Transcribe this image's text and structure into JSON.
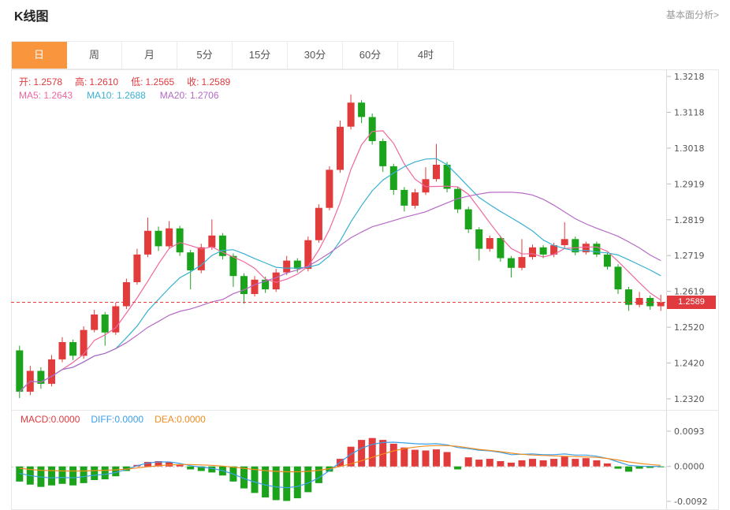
{
  "header": {
    "title": "K线图",
    "link": "基本面分析>"
  },
  "tabs": {
    "items": [
      {
        "label": "日",
        "active": true
      },
      {
        "label": "周",
        "active": false
      },
      {
        "label": "月",
        "active": false
      },
      {
        "label": "5分",
        "active": false
      },
      {
        "label": "15分",
        "active": false
      },
      {
        "label": "30分",
        "active": false
      },
      {
        "label": "60分",
        "active": false
      },
      {
        "label": "4时",
        "active": false
      }
    ]
  },
  "ohlc": {
    "open_label": "开:",
    "open_value": "1.2578",
    "high_label": "高:",
    "high_value": "1.2610",
    "low_label": "低:",
    "low_value": "1.2565",
    "close_label": "收:",
    "close_value": "1.2589"
  },
  "ma": {
    "ma5_label": "MA5:",
    "ma5_value": "1.2643",
    "ma10_label": "MA10:",
    "ma10_value": "1.2688",
    "ma20_label": "MA20:",
    "ma20_value": "1.2706"
  },
  "macd_header": {
    "macd_label": "MACD:",
    "macd_value": "0.0000",
    "diff_label": "DIFF:",
    "diff_value": "0.0000",
    "dea_label": "DEA:",
    "dea_value": "0.0000"
  },
  "price_tag": "1.2589",
  "colors": {
    "up": "#e23b3b",
    "down": "#1ca31c",
    "ma5": "#f0679e",
    "ma10": "#38b1d2",
    "ma20": "#b56ac5",
    "diff": "#3a9fe8",
    "dea": "#f08c1e",
    "tab_active_bg": "#f8953d",
    "price_tag_bg": "#e0393e"
  },
  "chart_data": [
    {
      "type": "candlestick",
      "title": "K线图",
      "ylim": [
        1.232,
        1.3218
      ],
      "y_axis_labels": [
        "1.3218",
        "1.3118",
        "1.3018",
        "1.2919",
        "1.2819",
        "1.2719",
        "1.2619",
        "1.2520",
        "1.2420",
        "1.2320"
      ],
      "current_price": 1.2589,
      "legend": [
        "MA5",
        "MA10",
        "MA20"
      ],
      "overlays": [
        {
          "name": "MA5",
          "window": 5
        },
        {
          "name": "MA10",
          "window": 10
        },
        {
          "name": "MA20",
          "window": 20
        }
      ],
      "candles": [
        [
          1.2455,
          1.2468,
          1.2322,
          1.234
        ],
        [
          1.234,
          1.2412,
          1.233,
          1.2398
        ],
        [
          1.2398,
          1.2408,
          1.2348,
          1.2362
        ],
        [
          1.2362,
          1.2442,
          1.2355,
          1.243
        ],
        [
          1.243,
          1.2492,
          1.2422,
          1.2478
        ],
        [
          1.2478,
          1.2485,
          1.2428,
          1.244
        ],
        [
          1.244,
          1.2522,
          1.2432,
          1.2512
        ],
        [
          1.2512,
          1.2568,
          1.2505,
          1.2555
        ],
        [
          1.2555,
          1.2562,
          1.2468,
          1.2505
        ],
        [
          1.2505,
          1.2588,
          1.2498,
          1.2578
        ],
        [
          1.2578,
          1.2655,
          1.257,
          1.2645
        ],
        [
          1.2645,
          1.2738,
          1.2638,
          1.2722
        ],
        [
          1.2722,
          1.2825,
          1.2715,
          1.2788
        ],
        [
          1.2788,
          1.28,
          1.2732,
          1.2745
        ],
        [
          1.2745,
          1.2815,
          1.2738,
          1.2795
        ],
        [
          1.2795,
          1.2802,
          1.2718,
          1.2728
        ],
        [
          1.2728,
          1.2735,
          1.2625,
          1.2678
        ],
        [
          1.2678,
          1.2752,
          1.267,
          1.2742
        ],
        [
          1.2742,
          1.282,
          1.2735,
          1.2775
        ],
        [
          1.2775,
          1.2782,
          1.2708,
          1.2718
        ],
        [
          1.2718,
          1.2725,
          1.2632,
          1.2662
        ],
        [
          1.2662,
          1.267,
          1.2585,
          1.2612
        ],
        [
          1.2612,
          1.2662,
          1.2605,
          1.2652
        ],
        [
          1.2652,
          1.266,
          1.2615,
          1.2625
        ],
        [
          1.2625,
          1.2682,
          1.2618,
          1.2672
        ],
        [
          1.2672,
          1.2718,
          1.2665,
          1.2705
        ],
        [
          1.2705,
          1.2712,
          1.2672,
          1.2682
        ],
        [
          1.2682,
          1.2772,
          1.2675,
          1.2762
        ],
        [
          1.2762,
          1.2862,
          1.2755,
          1.2852
        ],
        [
          1.2852,
          1.2968,
          1.2845,
          1.2958
        ],
        [
          1.2958,
          1.3095,
          1.295,
          1.3078
        ],
        [
          1.3078,
          1.3168,
          1.307,
          1.3145
        ],
        [
          1.3145,
          1.3152,
          1.3088,
          1.3105
        ],
        [
          1.3105,
          1.3115,
          1.3028,
          1.3038
        ],
        [
          1.3038,
          1.3045,
          1.2952,
          1.2968
        ],
        [
          1.2968,
          1.2975,
          1.2888,
          1.2902
        ],
        [
          1.2902,
          1.291,
          1.2842,
          1.2858
        ],
        [
          1.2858,
          1.2905,
          1.285,
          1.2895
        ],
        [
          1.2895,
          1.2965,
          1.2888,
          1.2932
        ],
        [
          1.2932,
          1.303,
          1.2925,
          1.2972
        ],
        [
          1.2972,
          1.298,
          1.2895,
          1.2905
        ],
        [
          1.2905,
          1.2912,
          1.2838,
          1.2848
        ],
        [
          1.2848,
          1.2855,
          1.2782,
          1.2792
        ],
        [
          1.2792,
          1.2798,
          1.2705,
          1.2738
        ],
        [
          1.2738,
          1.2775,
          1.273,
          1.2768
        ],
        [
          1.2768,
          1.2775,
          1.2702,
          1.2712
        ],
        [
          1.2712,
          1.2718,
          1.2658,
          1.2685
        ],
        [
          1.2685,
          1.2765,
          1.2678,
          1.2715
        ],
        [
          1.2715,
          1.275,
          1.2708,
          1.2742
        ],
        [
          1.2742,
          1.2748,
          1.2712,
          1.2722
        ],
        [
          1.2722,
          1.2755,
          1.2715,
          1.2748
        ],
        [
          1.2748,
          1.2812,
          1.274,
          1.2765
        ],
        [
          1.2765,
          1.2772,
          1.272,
          1.2728
        ],
        [
          1.2728,
          1.2758,
          1.2722,
          1.2752
        ],
        [
          1.2752,
          1.2758,
          1.2715,
          1.2722
        ],
        [
          1.2722,
          1.2728,
          1.268,
          1.2688
        ],
        [
          1.2688,
          1.2695,
          1.2612,
          1.2625
        ],
        [
          1.2625,
          1.2632,
          1.2565,
          1.2582
        ],
        [
          1.2582,
          1.2618,
          1.2575,
          1.2601
        ],
        [
          1.2601,
          1.2608,
          1.2568,
          1.2578
        ],
        [
          1.2578,
          1.261,
          1.2565,
          1.2589
        ]
      ]
    },
    {
      "type": "bar",
      "title": "MACD",
      "ylim": [
        -0.0092,
        0.0093
      ],
      "y_axis_labels": [
        "0.0093",
        "0.0000",
        "-0.0092"
      ],
      "histogram": [
        -0.004,
        -0.0048,
        -0.0054,
        -0.005,
        -0.0046,
        -0.005,
        -0.0044,
        -0.0036,
        -0.0034,
        -0.0026,
        -0.0012,
        0.0004,
        0.0012,
        0.0014,
        0.0012,
        0.0004,
        -0.0008,
        -0.0012,
        -0.0016,
        -0.0024,
        -0.004,
        -0.0058,
        -0.007,
        -0.0082,
        -0.0089,
        -0.0091,
        -0.0084,
        -0.0068,
        -0.0044,
        -0.0014,
        0.002,
        0.0052,
        0.007,
        0.0075,
        0.007,
        0.006,
        0.005,
        0.0044,
        0.0042,
        0.0045,
        0.0038,
        -0.0008,
        0.0024,
        0.0018,
        0.002,
        0.0014,
        0.001,
        0.0016,
        0.002,
        0.0016,
        0.002,
        0.0026,
        0.002,
        0.0022,
        0.0016,
        0.0008,
        -0.0006,
        -0.0014,
        -0.0006,
        -0.0004,
        -0.0001
      ],
      "diff": [
        -0.0018,
        -0.0024,
        -0.0028,
        -0.003,
        -0.0029,
        -0.003,
        -0.0027,
        -0.0023,
        -0.0021,
        -0.0016,
        -0.0008,
        0.0002,
        0.0009,
        0.0012,
        0.0012,
        0.0008,
        0.0002,
        -0.0002,
        -0.0005,
        -0.0011,
        -0.002,
        -0.0032,
        -0.0041,
        -0.0049,
        -0.0054,
        -0.0056,
        -0.0053,
        -0.0044,
        -0.003,
        -0.0011,
        0.0011,
        0.0032,
        0.0048,
        0.0058,
        0.0063,
        0.0064,
        0.0062,
        0.006,
        0.0059,
        0.006,
        0.0057,
        0.005,
        0.0047,
        0.0043,
        0.0041,
        0.0037,
        0.0031,
        0.0032,
        0.0033,
        0.0031,
        0.0031,
        0.0033,
        0.003,
        0.003,
        0.0027,
        0.0021,
        0.0012,
        0.0003,
        0.0001,
        0.0,
        0.0
      ],
      "dea": [
        -0.0005,
        -0.0008,
        -0.001,
        -0.0011,
        -0.0012,
        -0.0012,
        -0.0012,
        -0.0011,
        -0.001,
        -0.0009,
        -0.0007,
        -0.0004,
        -0.0001,
        0.0002,
        0.0004,
        0.0005,
        0.0005,
        0.0004,
        0.0003,
        0.0001,
        -0.0002,
        -0.0005,
        -0.0008,
        -0.0011,
        -0.0013,
        -0.0014,
        -0.0014,
        -0.0013,
        -0.001,
        -0.0006,
        0.0,
        0.0007,
        0.0015,
        0.0024,
        0.0033,
        0.0041,
        0.0047,
        0.0051,
        0.0054,
        0.0055,
        0.0055,
        0.0053,
        0.0049,
        0.0045,
        0.0042,
        0.0039,
        0.0035,
        0.0032,
        0.003,
        0.0029,
        0.0028,
        0.0027,
        0.0026,
        0.0025,
        0.0024,
        0.0021,
        0.0017,
        0.0012,
        0.0008,
        0.0005,
        0.0003
      ]
    }
  ]
}
